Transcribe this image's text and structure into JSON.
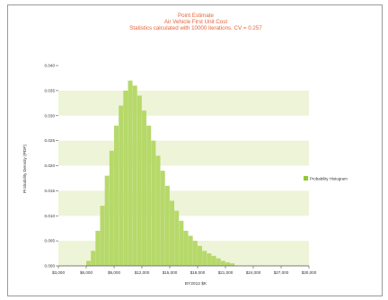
{
  "chart_data": {
    "type": "bar",
    "title": "Point Estimate",
    "subtitle": "Air Vehicle First Unit Cost",
    "subtitle2": "Statistics calculated with 10000 iterations. CV = 0.257",
    "xlabel": "BY2012 $K",
    "ylabel": "Probability Density (PDF)",
    "xlim": [
      3000,
      30000
    ],
    "ylim": [
      0,
      0.04
    ],
    "x_ticks": [
      "$3,000",
      "$6,000",
      "$9,000",
      "$12,000",
      "$15,000",
      "$18,000",
      "$21,000",
      "$24,000",
      "$27,000",
      "$30,000"
    ],
    "x_tick_values": [
      3000,
      6000,
      9000,
      12000,
      15000,
      18000,
      21000,
      24000,
      27000,
      30000
    ],
    "y_ticks": [
      "0.000",
      "0.005",
      "0.010",
      "0.015",
      "0.020",
      "0.025",
      "0.030",
      "0.035",
      "0.040"
    ],
    "y_tick_values": [
      0.0,
      0.005,
      0.01,
      0.015,
      0.02,
      0.025,
      0.03,
      0.035,
      0.04
    ],
    "grid": "alternating horizontal bands",
    "legend": {
      "position": "right",
      "entries": [
        "Probability Histogram"
      ]
    },
    "colors": {
      "bars": "#b6d96a",
      "band": "#eef4d8",
      "title": "#e8643a",
      "legend_swatch": "#8fca2e"
    },
    "series": [
      {
        "name": "Probability Histogram",
        "x": [
          6000,
          6500,
          7000,
          7500,
          8000,
          8500,
          9000,
          9500,
          10000,
          10500,
          11000,
          11500,
          12000,
          12500,
          13000,
          13500,
          14000,
          14500,
          15000,
          15500,
          16000,
          16500,
          17000,
          17500,
          18000,
          18500,
          19000,
          19500,
          20000,
          20500,
          21000,
          21500
        ],
        "values": [
          0.001,
          0.003,
          0.007,
          0.012,
          0.018,
          0.023,
          0.028,
          0.032,
          0.035,
          0.037,
          0.036,
          0.034,
          0.031,
          0.028,
          0.025,
          0.022,
          0.019,
          0.016,
          0.013,
          0.011,
          0.009,
          0.007,
          0.006,
          0.005,
          0.004,
          0.003,
          0.0025,
          0.002,
          0.0015,
          0.001,
          0.0007,
          0.0005
        ]
      }
    ]
  }
}
